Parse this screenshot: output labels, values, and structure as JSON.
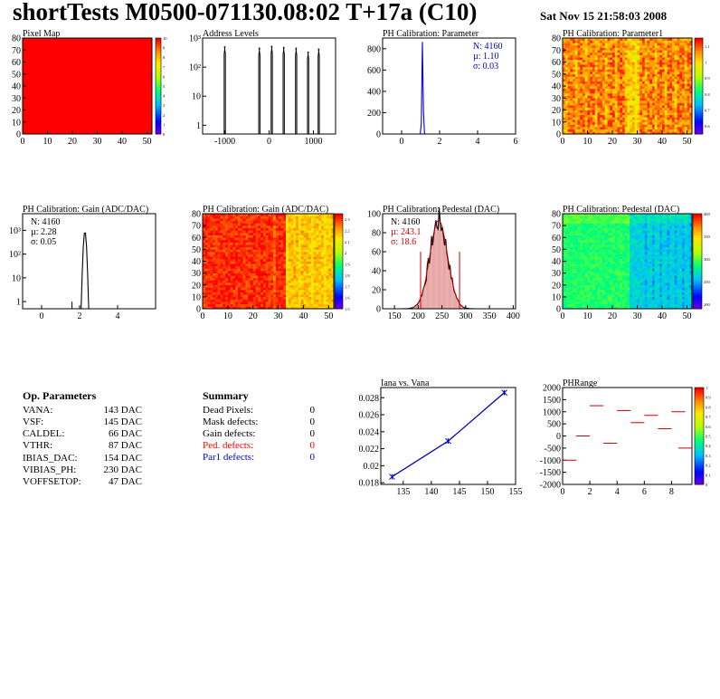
{
  "header": {
    "title": "shortTests M0500-071130.08:02 T+17a (C10)",
    "date": "Sat Nov 15 21:58:03 2008"
  },
  "op_params": {
    "title": "Op. Parameters",
    "rows": [
      {
        "name": "VANA:",
        "value": "143 DAC"
      },
      {
        "name": "VSF:",
        "value": "145 DAC"
      },
      {
        "name": "CALDEL:",
        "value": "66 DAC"
      },
      {
        "name": "VTHR:",
        "value": "87 DAC"
      },
      {
        "name": "IBIAS_DAC:",
        "value": "154 DAC"
      },
      {
        "name": "VIBIAS_PH:",
        "value": "230 DAC"
      },
      {
        "name": "VOFFSETOP:",
        "value": "47 DAC"
      }
    ]
  },
  "summary": {
    "title": "Summary",
    "rows": [
      {
        "name": "Dead Pixels:",
        "value": "0",
        "color": "#000000"
      },
      {
        "name": "Mask defects:",
        "value": "0",
        "color": "#000000"
      },
      {
        "name": "Gain defects:",
        "value": "0",
        "color": "#000000"
      },
      {
        "name": "Ped. defects:",
        "value": "0",
        "color": "#ff0000"
      },
      {
        "name": "Par1 defects:",
        "value": "0",
        "color": "#0000cc"
      }
    ]
  },
  "chart_data": [
    {
      "id": "pixelmap",
      "type": "heatmap",
      "title": "Pixel Map",
      "xlim": [
        0,
        52
      ],
      "ylim": [
        0,
        80
      ],
      "xticks": [
        0,
        10,
        20,
        30,
        40,
        50
      ],
      "yticks": [
        0,
        10,
        20,
        30,
        40,
        50,
        60,
        70,
        80
      ],
      "value": 10,
      "zlim": [
        0,
        10
      ],
      "zticks": [
        0,
        1,
        2,
        3,
        4,
        5,
        6,
        7,
        8,
        9,
        10
      ]
    },
    {
      "id": "addr",
      "type": "bar",
      "title": "Address Levels",
      "log_y": true,
      "xlim": [
        -1500,
        1500
      ],
      "ylim": [
        0.5,
        1000
      ],
      "xticks": [
        -1000,
        0,
        1000
      ],
      "yticks": [
        1,
        10,
        100,
        1000
      ],
      "peaks": [
        {
          "x": -1000,
          "y": 500
        },
        {
          "x": -220,
          "y": 450
        },
        {
          "x": 60,
          "y": 520
        },
        {
          "x": 330,
          "y": 480
        },
        {
          "x": 610,
          "y": 450
        },
        {
          "x": 880,
          "y": 330
        },
        {
          "x": 1120,
          "y": 420
        }
      ]
    },
    {
      "id": "par",
      "type": "bar",
      "title": "PH Calibration: Parameter",
      "xlim": [
        -1,
        6
      ],
      "ylim": [
        0,
        900
      ],
      "xticks": [
        0,
        2,
        4,
        6
      ],
      "yticks": [
        0,
        200,
        400,
        600,
        800
      ],
      "stats": {
        "n": "N: 4160",
        "mean": "µ: 1.10",
        "sigma": "σ: 0.03"
      },
      "gauss": {
        "mean": 1.1,
        "sigma": 0.03,
        "peak": 880
      }
    },
    {
      "id": "par1",
      "type": "heatmap",
      "title": "PH Calibration: Parameter1",
      "xlim": [
        0,
        52
      ],
      "ylim": [
        0,
        80
      ],
      "xticks": [
        0,
        10,
        20,
        30,
        40,
        50
      ],
      "yticks": [
        0,
        10,
        20,
        30,
        40,
        50,
        60,
        70,
        80
      ],
      "zlim": [
        0.55,
        1.15
      ],
      "zticks": [
        0.6,
        0.7,
        0.8,
        0.9,
        1,
        1.1
      ]
    },
    {
      "id": "gain",
      "type": "bar",
      "title": "PH Calibration: Gain (ADC/DAC)",
      "log_y": true,
      "xlim": [
        -1,
        6
      ],
      "ylim": [
        0.5,
        5000
      ],
      "xticks": [
        0,
        2,
        4
      ],
      "yticks": [
        1,
        10,
        100,
        1000
      ],
      "stats": {
        "n": "N: 4160",
        "mean": "µ: 2.28",
        "sigma": "σ: 0.05"
      },
      "gauss": {
        "mean": 2.28,
        "sigma": 0.05,
        "peak": 900
      }
    },
    {
      "id": "gainmap",
      "type": "heatmap",
      "title": "PH Calibration: Gain (ADC/DAC)",
      "xlim": [
        0,
        52
      ],
      "ylim": [
        0,
        80
      ],
      "xticks": [
        0,
        10,
        20,
        30,
        40,
        50
      ],
      "yticks": [
        0,
        10,
        20,
        30,
        40,
        50,
        60,
        70,
        80
      ],
      "zlim": [
        1.5,
        2.35
      ],
      "zticks": [
        1.5,
        1.6,
        1.7,
        1.8,
        1.9,
        2,
        2.1,
        2.2,
        2.3
      ]
    },
    {
      "id": "ped",
      "type": "bar",
      "title": "PH Calibration: Pedestal (DAC)",
      "xlim": [
        125,
        405
      ],
      "ylim": [
        0,
        100
      ],
      "xticks": [
        150,
        200,
        250,
        300,
        350,
        400
      ],
      "yticks": [
        0,
        20,
        40,
        60,
        80,
        100
      ],
      "stats": {
        "n": "N: 4160",
        "mean": "µ: 243.1",
        "sigma": "σ: 18.6"
      },
      "gauss": {
        "mean": 243.1,
        "sigma": 18.6,
        "peak": 93
      },
      "cuts": [
        205,
        287
      ]
    },
    {
      "id": "pedmap",
      "type": "heatmap",
      "title": "PH Calibration: Pedestal (DAC)",
      "xlim": [
        0,
        52
      ],
      "ylim": [
        0,
        80
      ],
      "xticks": [
        0,
        10,
        20,
        30,
        40,
        50
      ],
      "yticks": [
        0,
        10,
        20,
        30,
        40,
        50,
        60,
        70,
        80
      ],
      "zlim": [
        190,
        400
      ],
      "zticks": [
        200,
        250,
        300,
        350,
        400
      ]
    },
    {
      "id": "iana",
      "type": "line",
      "title": "Iana vs. Vana",
      "xlim": [
        131,
        155
      ],
      "ylim": [
        0.0178,
        0.0292
      ],
      "xticks": [
        135,
        140,
        145,
        150,
        155
      ],
      "yticks": [
        0.018,
        0.02,
        0.022,
        0.024,
        0.026,
        0.028
      ],
      "points": [
        {
          "x": 133,
          "y": 0.0187
        },
        {
          "x": 143,
          "y": 0.0229
        },
        {
          "x": 153,
          "y": 0.0286
        }
      ]
    },
    {
      "id": "phr",
      "type": "scatter",
      "title": "PHRange",
      "xlim": [
        0,
        9.5
      ],
      "ylim": [
        -2000,
        2000
      ],
      "xticks": [
        0,
        2,
        4,
        6,
        8
      ],
      "yticks": [
        -2000,
        -1500,
        -1000,
        -500,
        0,
        500,
        1000,
        1500,
        2000
      ],
      "zlim": [
        0,
        1
      ],
      "zticks": [
        0,
        0.1,
        0.2,
        0.3,
        0.4,
        0.5,
        0.6,
        0.7,
        0.8,
        0.9,
        1
      ],
      "points": [
        {
          "x": 0.5,
          "y": -1000
        },
        {
          "x": 1.5,
          "y": 0
        },
        {
          "x": 2.5,
          "y": 1250
        },
        {
          "x": 3.5,
          "y": -300
        },
        {
          "x": 4.5,
          "y": 1050
        },
        {
          "x": 5.5,
          "y": 550
        },
        {
          "x": 6.5,
          "y": 850
        },
        {
          "x": 7.5,
          "y": 300
        },
        {
          "x": 8.5,
          "y": 1000
        },
        {
          "x": 9.0,
          "y": -500
        }
      ]
    }
  ]
}
